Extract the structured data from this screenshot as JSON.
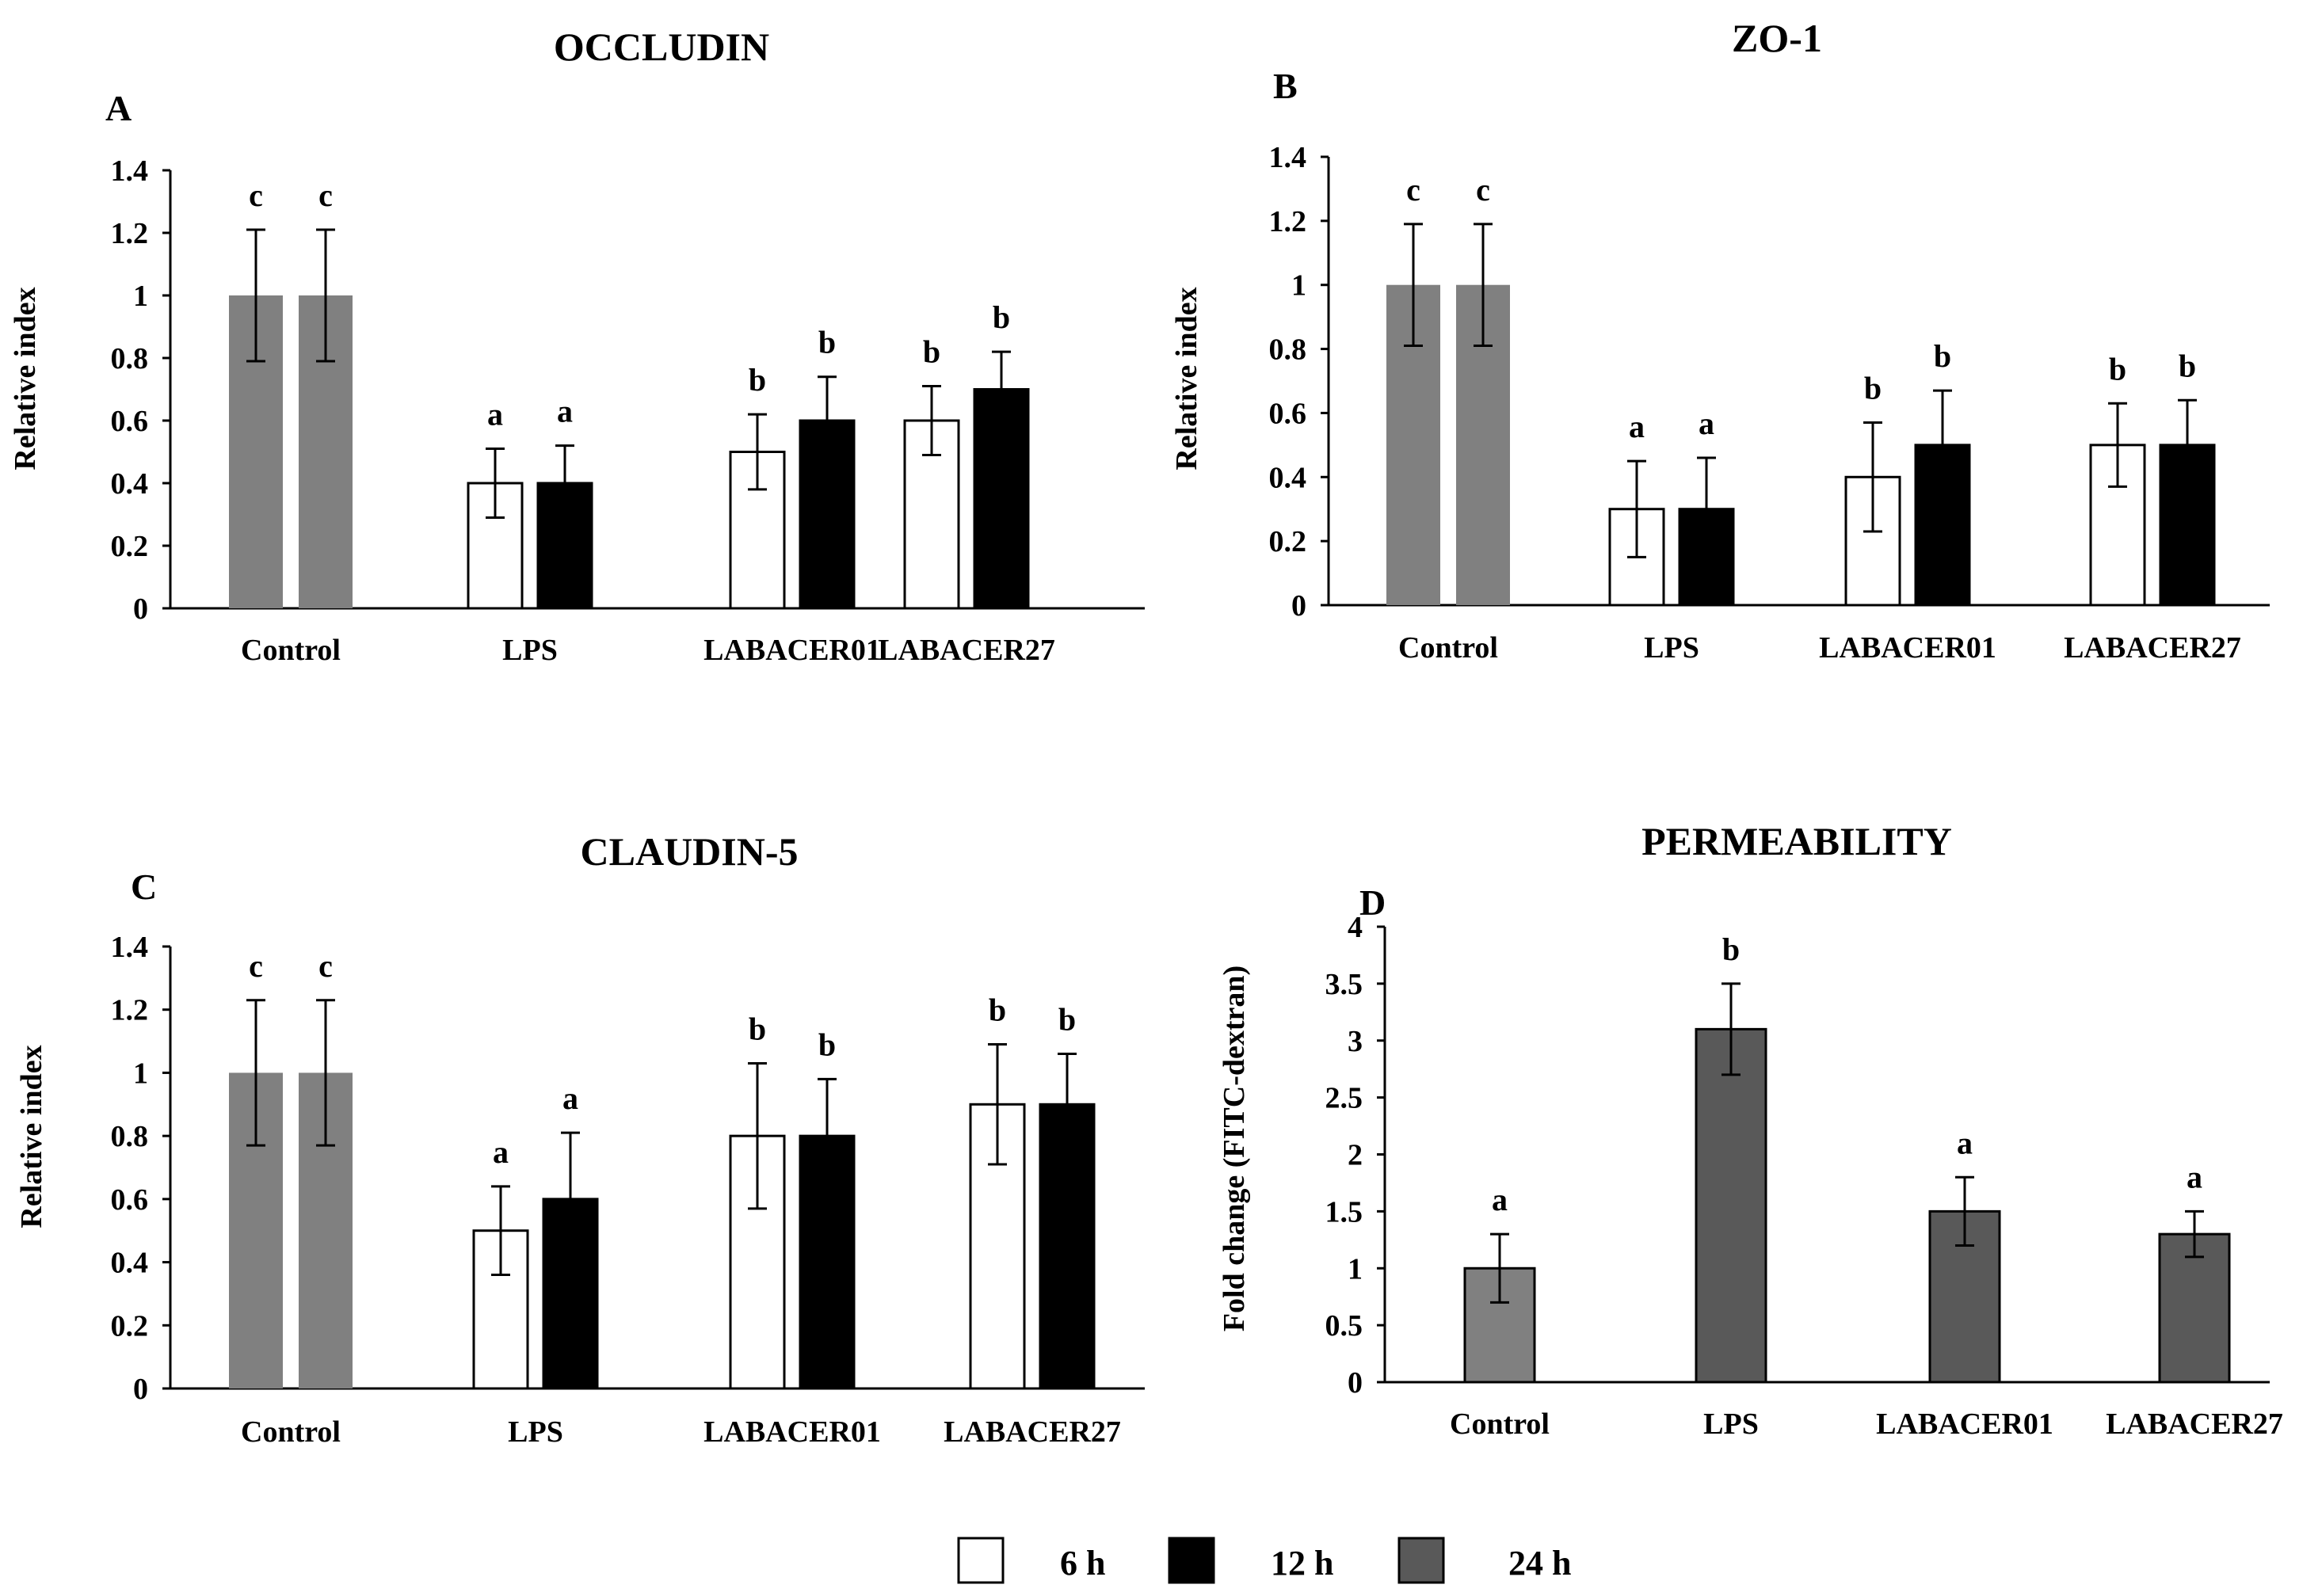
{
  "colors": {
    "control": "#808080",
    "h6": "#ffffff",
    "h12": "#000000",
    "h24": "#595959",
    "axis": "#000000"
  },
  "legend": [
    {
      "label": "6 h",
      "color": "#ffffff"
    },
    {
      "label": "12 h",
      "color": "#000000"
    },
    {
      "label": "24 h",
      "color": "#595959"
    }
  ],
  "chart_data": [
    {
      "panel": "A",
      "type": "bar",
      "title": "OCCLUDIN",
      "ylabel": "Relative index",
      "ylim": [
        0,
        1.4
      ],
      "yticks": [
        "0",
        "0.2",
        "0.4",
        "0.6",
        "0.8",
        "1",
        "1.2",
        "1.4"
      ],
      "categories": [
        "Control",
        "LPS",
        "LABACER01",
        "LABACER27"
      ],
      "series": [
        {
          "name": "6 h",
          "values": [
            1.0,
            0.4,
            0.5,
            0.6
          ],
          "errors": [
            0.21,
            0.11,
            0.12,
            0.11
          ],
          "letters": [
            "c",
            "a",
            "b",
            "b"
          ]
        },
        {
          "name": "12 h",
          "values": [
            1.0,
            0.4,
            0.6,
            0.7
          ],
          "errors": [
            0.21,
            0.12,
            0.14,
            0.12
          ],
          "letters": [
            "c",
            "a",
            "b",
            "b"
          ]
        }
      ]
    },
    {
      "panel": "B",
      "type": "bar",
      "title": "ZO-1",
      "ylabel": "Relative index",
      "ylim": [
        0,
        1.4
      ],
      "yticks": [
        "0",
        "0.2",
        "0.4",
        "0.6",
        "0.8",
        "1",
        "1.2",
        "1.4"
      ],
      "categories": [
        "Control",
        "LPS",
        "LABACER01",
        "LABACER27"
      ],
      "series": [
        {
          "name": "6 h",
          "values": [
            1.0,
            0.3,
            0.4,
            0.5
          ],
          "errors": [
            0.19,
            0.15,
            0.17,
            0.13
          ],
          "letters": [
            "c",
            "a",
            "b",
            "b"
          ]
        },
        {
          "name": "12 h",
          "values": [
            1.0,
            0.3,
            0.5,
            0.5
          ],
          "errors": [
            0.19,
            0.16,
            0.17,
            0.14
          ],
          "letters": [
            "c",
            "a",
            "b",
            "b"
          ]
        }
      ]
    },
    {
      "panel": "C",
      "type": "bar",
      "title": "CLAUDIN-5",
      "ylabel": "Relative index",
      "ylim": [
        0,
        1.4
      ],
      "yticks": [
        "0",
        "0.2",
        "0.4",
        "0.6",
        "0.8",
        "1",
        "1.2",
        "1.4"
      ],
      "categories": [
        "Control",
        "LPS",
        "LABACER01",
        "LABACER27"
      ],
      "series": [
        {
          "name": "6 h",
          "values": [
            1.0,
            0.5,
            0.8,
            0.9
          ],
          "errors": [
            0.23,
            0.14,
            0.23,
            0.19
          ],
          "letters": [
            "c",
            "a",
            "b",
            "b"
          ]
        },
        {
          "name": "12 h",
          "values": [
            1.0,
            0.6,
            0.8,
            0.9
          ],
          "errors": [
            0.23,
            0.21,
            0.18,
            0.16
          ],
          "letters": [
            "c",
            "a",
            "b",
            "b"
          ]
        }
      ]
    },
    {
      "panel": "D",
      "type": "bar",
      "title": "PERMEABILITY",
      "ylabel": "Fold change (FITC-dextran)",
      "ylim": [
        0,
        4
      ],
      "yticks": [
        "0",
        "0.5",
        "1",
        "1.5",
        "2",
        "2.5",
        "3",
        "3.5",
        "4"
      ],
      "categories": [
        "Control",
        "LPS",
        "LABACER01",
        "LABACER27"
      ],
      "series": [
        {
          "name": "24 h",
          "values": [
            1.0,
            3.1,
            1.5,
            1.3
          ],
          "errors": [
            0.3,
            0.4,
            0.3,
            0.2
          ],
          "letters": [
            "a",
            "b",
            "a",
            "a"
          ]
        }
      ]
    }
  ]
}
